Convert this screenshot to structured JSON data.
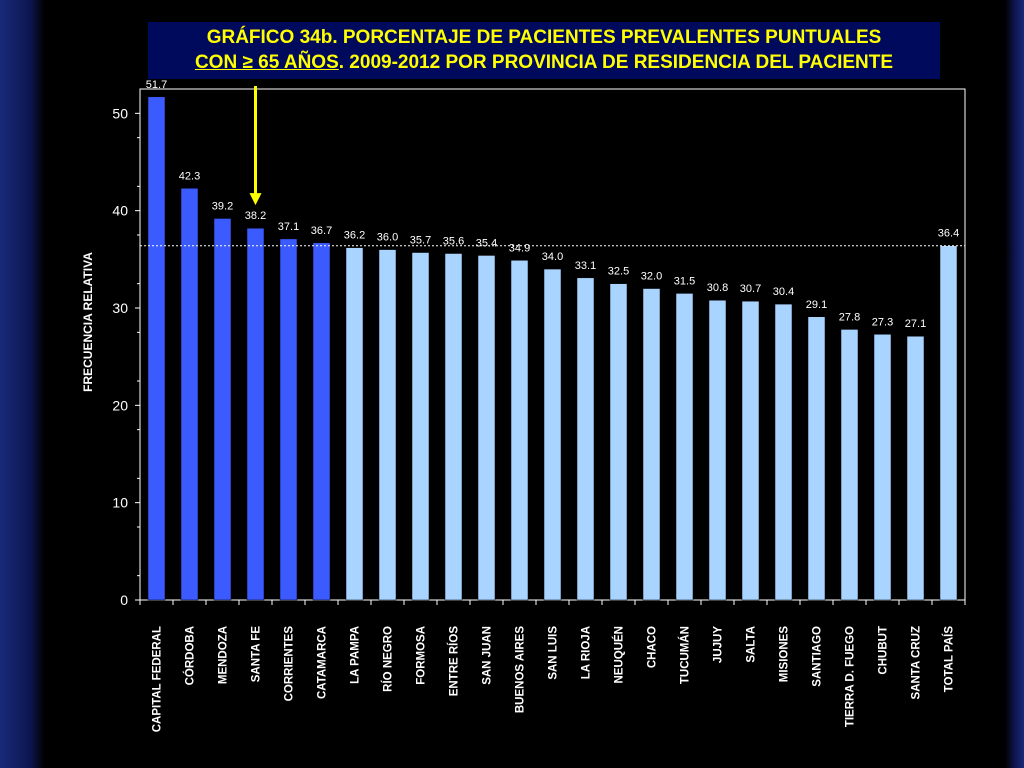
{
  "title": {
    "line1": "GRÁFICO 34b. PORCENTAJE DE PACIENTES PREVALENTES PUNTUALES",
    "line2_underlined": "CON  ≥ 65 AÑOS",
    "line2_rest": ". 2009-2012 POR PROVINCIA DE RESIDENCIA DEL PACIENTE"
  },
  "colors": {
    "highlight_bar": "#3b5bff",
    "normal_bar": "#a9d4ff",
    "arrow": "#ffff00",
    "title_text": "#ffff00",
    "title_bg": "#000a5c"
  },
  "chart_data": {
    "type": "bar",
    "ylabel": "FRECUENCIA RELATIVA",
    "xlabel": "",
    "ylim": [
      0,
      50
    ],
    "yticks": [
      0,
      10,
      20,
      30,
      40,
      50
    ],
    "reference_line": 36.4,
    "highlighted_count": 6,
    "arrow_target": "SANTA FE",
    "categories": [
      "CAPITAL  FEDERAL",
      "CÓRDOBA",
      "MENDOZA",
      "SANTA FE",
      "CORRIENTES",
      "CATAMARCA",
      "LA PAMPA",
      "RÍO NEGRO",
      "FORMOSA",
      "ENTRE RÍOS",
      "SAN JUAN",
      "BUENOS AIRES",
      "SAN LUIS",
      "LA RIOJA",
      "NEUQUÉN",
      "CHACO",
      "TUCUMÁN",
      "JUJUY",
      "SALTA",
      "MISIONES",
      "SANTIAGO",
      "TIERRA  D. FUEGO",
      "CHUBUT",
      "SANTA CRUZ",
      "TOTAL PAÍS"
    ],
    "values": [
      51.7,
      42.3,
      39.2,
      38.2,
      37.1,
      36.7,
      36.2,
      36.0,
      35.7,
      35.6,
      35.4,
      34.9,
      34.0,
      33.1,
      32.5,
      32.0,
      31.5,
      30.8,
      30.7,
      30.4,
      29.1,
      27.8,
      27.3,
      27.1,
      36.4
    ],
    "value_labels": [
      "51.7",
      "42.3",
      "39.2",
      "38.2",
      "37.1",
      "36.7",
      "36.2",
      "36.0",
      "35.7",
      "35.6",
      "35.4",
      "34.9",
      "34.0",
      "33.1",
      "32.5",
      "32.0",
      "31.5",
      "30.8",
      "30.7",
      "30.4",
      "29.1",
      "27.8",
      "27.3",
      "27.1",
      "36.4"
    ]
  }
}
